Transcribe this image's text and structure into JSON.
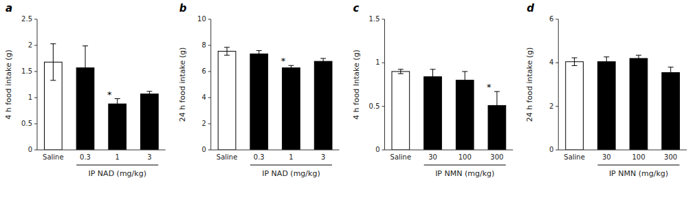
{
  "chart_data": [
    {
      "type": "bar",
      "title": "a",
      "ylabel": "4 h food intake (g)",
      "xlabel": "IP NAD (mg/kg)",
      "categories": [
        "Saline",
        "0.3",
        "1",
        "3"
      ],
      "values": [
        1.68,
        1.57,
        0.88,
        1.07
      ],
      "errors": [
        0.35,
        0.42,
        0.1,
        0.05
      ],
      "colors": [
        "white",
        "black",
        "black",
        "black"
      ],
      "annotations": [
        {
          "category": "1",
          "text": "*"
        }
      ],
      "ylim": [
        0,
        2.5
      ],
      "yticks": [
        0,
        0.5,
        1,
        1.5,
        2,
        2.5
      ],
      "grid": false
    },
    {
      "type": "bar",
      "title": "b",
      "ylabel": "24 h food intake (g)",
      "xlabel": "IP NAD (mg/kg)",
      "categories": [
        "Saline",
        "0.3",
        "1",
        "3"
      ],
      "values": [
        7.55,
        7.35,
        6.28,
        6.78
      ],
      "errors": [
        0.3,
        0.25,
        0.18,
        0.22
      ],
      "colors": [
        "white",
        "black",
        "black",
        "black"
      ],
      "annotations": [
        {
          "category": "1",
          "text": "*"
        }
      ],
      "ylim": [
        0,
        10
      ],
      "yticks": [
        0,
        2,
        4,
        6,
        8,
        10
      ],
      "grid": false
    },
    {
      "type": "bar",
      "title": "c",
      "ylabel": "4 h food Intake (g)",
      "xlabel": "IP NMN (mg/kg)",
      "categories": [
        "Saline",
        "30",
        "100",
        "300"
      ],
      "values": [
        0.9,
        0.84,
        0.8,
        0.51
      ],
      "errors": [
        0.025,
        0.085,
        0.1,
        0.16
      ],
      "colors": [
        "white",
        "black",
        "black",
        "black"
      ],
      "annotations": [
        {
          "category": "300",
          "text": "*"
        }
      ],
      "ylim": [
        0,
        1.5
      ],
      "yticks": [
        0,
        0.5,
        1,
        1.5
      ],
      "grid": false
    },
    {
      "type": "bar",
      "title": "d",
      "ylabel": "24 h food intake (g)",
      "xlabel": "IP NMN (mg/kg)",
      "categories": [
        "Saline",
        "30",
        "100",
        "300"
      ],
      "values": [
        4.05,
        4.05,
        4.2,
        3.55
      ],
      "errors": [
        0.18,
        0.22,
        0.15,
        0.25
      ],
      "colors": [
        "white",
        "black",
        "black",
        "black"
      ],
      "annotations": [],
      "ylim": [
        0,
        6
      ],
      "yticks": [
        0,
        2,
        4,
        6
      ],
      "grid": false
    }
  ]
}
